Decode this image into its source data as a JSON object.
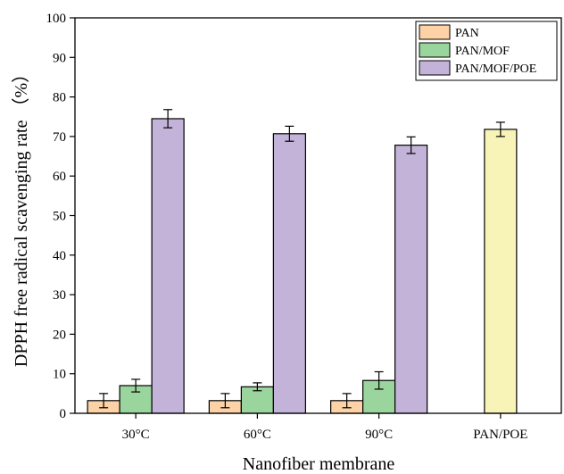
{
  "chart_data": {
    "type": "bar",
    "title": "",
    "xlabel": "Nanofiber membrane",
    "ylabel": "DPPH free radical scavenging rate （%）",
    "ylim": [
      0,
      100
    ],
    "yticks": [
      "0",
      "10",
      "20",
      "30",
      "40",
      "50",
      "60",
      "70",
      "80",
      "90",
      "100"
    ],
    "categories": [
      "30°C",
      "60°C",
      "90°C",
      "PAN/POE"
    ],
    "grid": false,
    "legend_position": "top-right",
    "series": [
      {
        "name": "PAN",
        "color": "#FCD2A6",
        "values": [
          3.2,
          3.2,
          3.2,
          null
        ],
        "errors": [
          1.8,
          1.8,
          1.8,
          null
        ]
      },
      {
        "name": "PAN/MOF",
        "color": "#9BD59E",
        "values": [
          7.0,
          6.7,
          8.3,
          null
        ],
        "errors": [
          1.6,
          1.0,
          2.2,
          null
        ]
      },
      {
        "name": "PAN/MOF/POE",
        "color": "#C3B3D9",
        "values": [
          74.5,
          70.7,
          67.8,
          null
        ],
        "errors": [
          2.3,
          1.9,
          2.1,
          null
        ]
      },
      {
        "name": "",
        "color": "#F8F4B8",
        "values": [
          null,
          null,
          null,
          71.8
        ],
        "errors": [
          null,
          null,
          null,
          1.8
        ]
      }
    ]
  }
}
